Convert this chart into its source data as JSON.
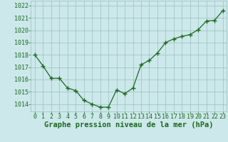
{
  "x": [
    0,
    1,
    2,
    3,
    4,
    5,
    6,
    7,
    8,
    9,
    10,
    11,
    12,
    13,
    14,
    15,
    16,
    17,
    18,
    19,
    20,
    21,
    22,
    23
  ],
  "y": [
    1018.0,
    1017.1,
    1016.1,
    1016.1,
    1015.3,
    1015.1,
    1014.3,
    1014.0,
    1013.75,
    1013.75,
    1015.15,
    1014.85,
    1015.3,
    1017.2,
    1017.55,
    1018.15,
    1019.0,
    1019.3,
    1019.5,
    1019.65,
    1020.05,
    1020.75,
    1020.8,
    1021.6
  ],
  "ylim": [
    1013.4,
    1022.4
  ],
  "yticks": [
    1014,
    1015,
    1016,
    1017,
    1018,
    1019,
    1020,
    1021,
    1022
  ],
  "xticks": [
    0,
    1,
    2,
    3,
    4,
    5,
    6,
    7,
    8,
    9,
    10,
    11,
    12,
    13,
    14,
    15,
    16,
    17,
    18,
    19,
    20,
    21,
    22,
    23
  ],
  "xlabel": "Graphe pression niveau de la mer (hPa)",
  "line_color": "#1a6b1a",
  "marker_color": "#1a6b1a",
  "bg_color": "#cce8ea",
  "grid_color": "#9bbfc2",
  "axis_bg": "#cce8ea",
  "xlabel_color": "#1a6b1a",
  "tick_color": "#1a6b1a",
  "xlabel_fontsize": 7.5,
  "tick_fontsize": 6.0
}
